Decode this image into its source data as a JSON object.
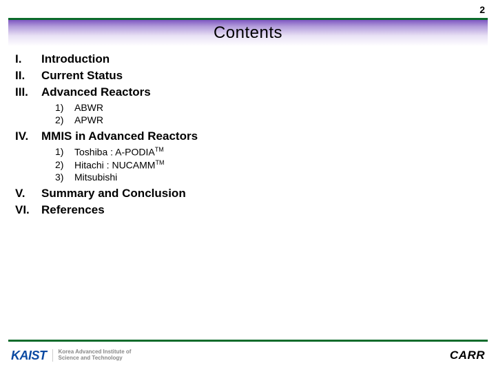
{
  "page_number": "2",
  "title": "Contents",
  "colors": {
    "rule": "#0b6b2b",
    "banner_top": "#7e57c2",
    "banner_mid": "#b39ddb",
    "banner_low": "#e8e0f5",
    "kaist": "#0b4aa2",
    "text": "#000000"
  },
  "items": {
    "i1_num": "I.",
    "i1_label": "Introduction",
    "i2_num": "II.",
    "i2_label": "Current Status",
    "i3_num": "III.",
    "i3_label": "Advanced Reactors",
    "i3s1_num": "1)",
    "i3s1_label": "ABWR",
    "i3s2_num": "2)",
    "i3s2_label": "APWR",
    "i4_num": "IV.",
    "i4_label": "MMIS in Advanced Reactors",
    "i4s1_num": "1)",
    "i4s1_label_a": "Toshiba : A-PODIA",
    "i4s1_label_sup": "TM",
    "i4s2_num": "2)",
    "i4s2_label_a": "Hitachi : NUCAMM",
    "i4s2_label_sup": "TM",
    "i4s3_num": "3)",
    "i4s3_label": "Mitsubishi",
    "i5_num": "V.",
    "i5_label": "Summary and Conclusion",
    "i6_num": "VI.",
    "i6_label": "References"
  },
  "footer": {
    "kaist": "KAIST",
    "kaist_sub1": "Korea Advanced Institute of",
    "kaist_sub2": "Science and Technology",
    "carr": "CARR"
  }
}
